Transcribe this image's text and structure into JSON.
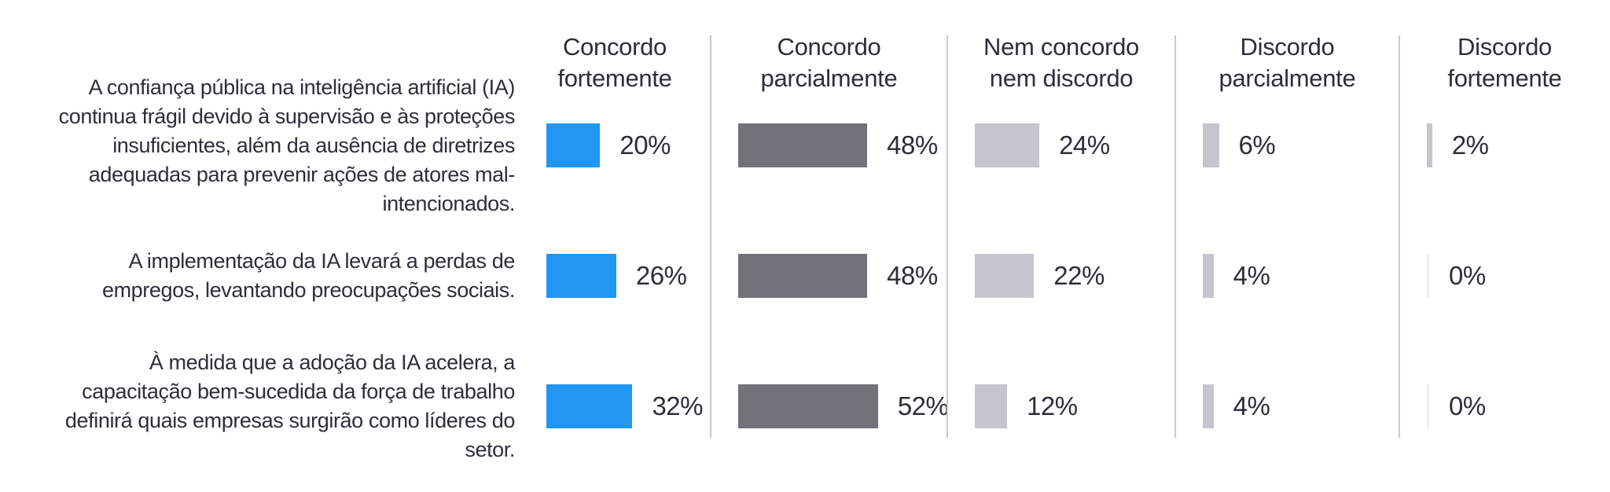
{
  "chart_data": {
    "type": "bar",
    "orientation": "horizontal",
    "value_unit": "%",
    "xlim": [
      0,
      100
    ],
    "grid": false,
    "data_labels": true,
    "legend_position": "column-headers-top",
    "categories": [
      "A confiança pública na inteligência artificial (IA) continua frágil devido à supervisão e às proteções insuficientes, além da ausência de diretrizes adequadas para prevenir ações de atores mal-intencionados.",
      "A implementação da IA levará a perdas de empregos, levantando preocupações sociais.",
      "À medida que a adoção da IA acelera, a capacitação bem-sucedida da força de trabalho definirá quais empresas surgirão como líderes do setor."
    ],
    "series": [
      {
        "name": "Concordo fortemente",
        "color": "#2196F3",
        "values": [
          20,
          26,
          32
        ]
      },
      {
        "name": "Concordo parcialmente",
        "color": "#72727B",
        "values": [
          48,
          48,
          52
        ]
      },
      {
        "name": "Nem concordo nem discordo",
        "color": "#C5C5CE",
        "values": [
          24,
          22,
          12
        ]
      },
      {
        "name": "Discordo parcialmente",
        "color": "#C5C5CE",
        "values": [
          6,
          4,
          4
        ]
      },
      {
        "name": "Discordo fortemente",
        "color": "#C5C5CE",
        "values": [
          2,
          0,
          0
        ]
      }
    ]
  },
  "headers": [
    {
      "label": "Concordo fortemente"
    },
    {
      "label": "Concordo parcialmente"
    },
    {
      "label": "Nem concordo nem discordo"
    },
    {
      "label": "Discordo parcialmente"
    },
    {
      "label": "Discordo fortemente"
    }
  ],
  "rows": [
    {
      "statement": "A confiança pública na inteligência artificial (IA) continua frágil devido à supervisão e às proteções insuficientes, além da ausência de diretrizes adequadas para prevenir ações de atores mal-intencionados.",
      "cells": [
        {
          "pct": 20,
          "label": "20%"
        },
        {
          "pct": 48,
          "label": "48%"
        },
        {
          "pct": 24,
          "label": "24%"
        },
        {
          "pct": 6,
          "label": "6%"
        },
        {
          "pct": 2,
          "label": "2%"
        }
      ]
    },
    {
      "statement": "A implementação da IA levará a perdas de empregos, levantando preocupações sociais.",
      "cells": [
        {
          "pct": 26,
          "label": "26%"
        },
        {
          "pct": 48,
          "label": "48%"
        },
        {
          "pct": 22,
          "label": "22%"
        },
        {
          "pct": 4,
          "label": "4%"
        },
        {
          "pct": 0,
          "label": "0%"
        }
      ]
    },
    {
      "statement": "À medida que a adoção da IA acelera, a capacitação bem-sucedida da força de trabalho definirá quais empresas surgirão como líderes do setor.",
      "cells": [
        {
          "pct": 32,
          "label": "32%"
        },
        {
          "pct": 52,
          "label": "52%"
        },
        {
          "pct": 12,
          "label": "12%"
        },
        {
          "pct": 4,
          "label": "4%"
        },
        {
          "pct": 0,
          "label": "0%"
        }
      ]
    }
  ],
  "colors": {
    "agree_strong": "#2196F3",
    "agree_partial": "#72727B",
    "neutral_and_disagree": "#C5C5CE",
    "zero_bar": "#ECECF0",
    "divider": "#C9C9D0",
    "text": "#2E2E38",
    "background": "#FFFFFF"
  }
}
